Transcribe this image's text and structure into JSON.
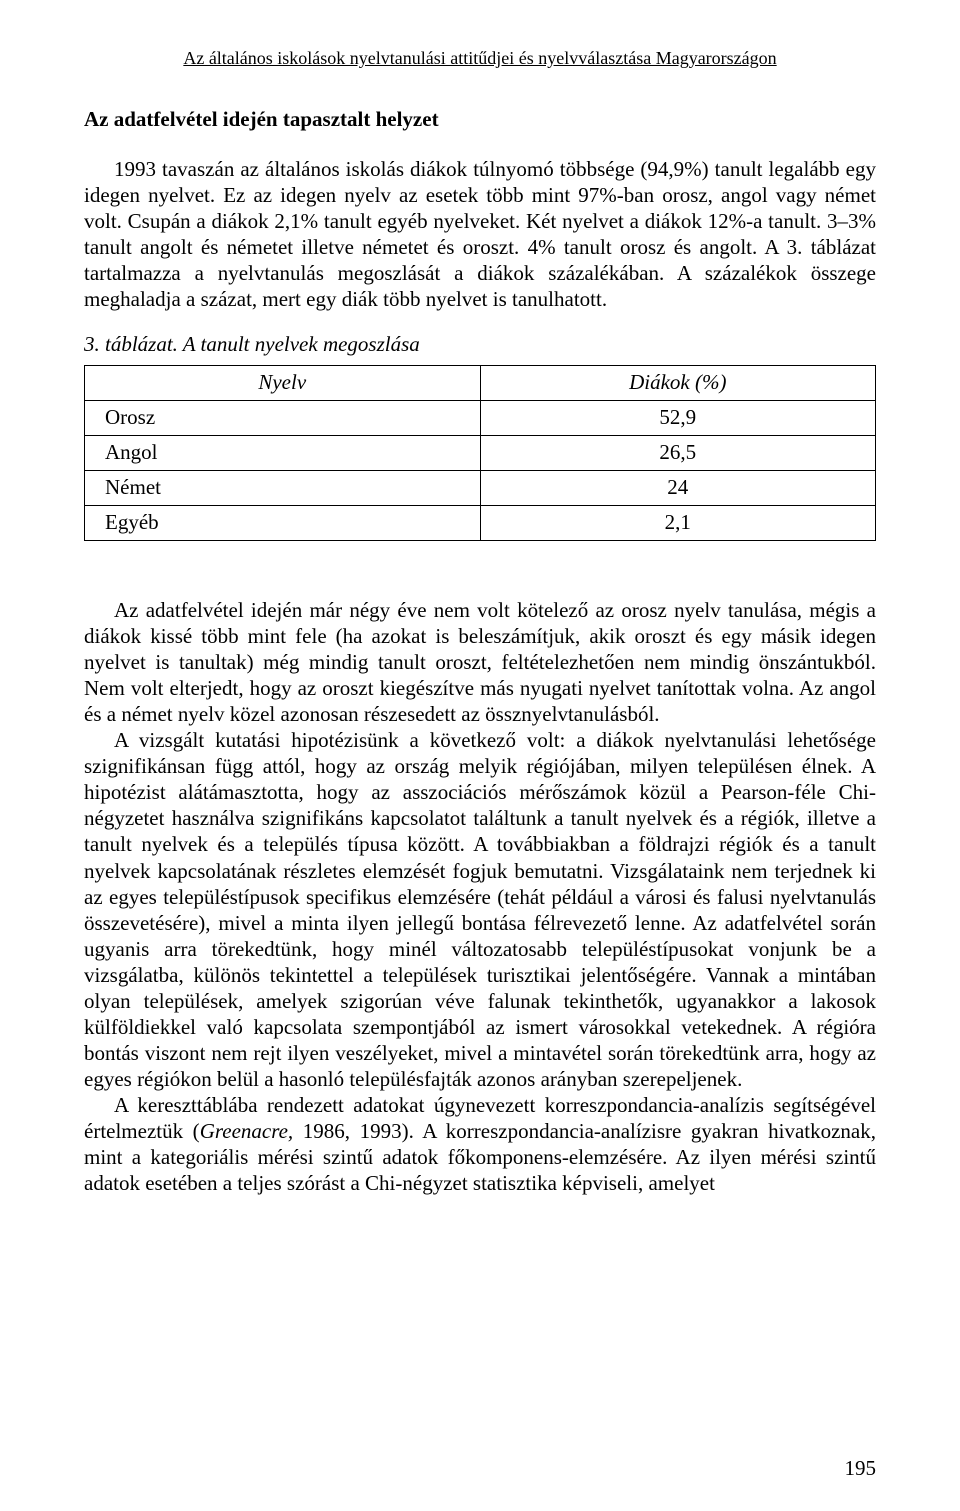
{
  "page": {
    "running_header": "Az általános iskolások nyelvtanulási attitűdjei és nyelvválasztása Magyarországon",
    "section_title": "Az adatfelvétel idején tapasztalt helyzet",
    "number": "195"
  },
  "paragraphs": {
    "p1": "1993 tavaszán az általános iskolás diákok túlnyomó többsége (94,9%) tanult legalább egy idegen nyelvet. Ez az idegen nyelv az esetek több mint 97%-ban orosz, angol vagy német volt. Csupán a diákok 2,1% tanult egyéb nyelveket. Két nyelvet a diákok 12%-a tanult. 3–3% tanult angolt és németet illetve németet és oroszt. 4% tanult orosz és angolt. A 3. táblázat tartalmazza a nyelvtanulás megoszlását a diákok százalékában. A százalékok összege meghaladja a százat, mert egy diák több nyelvet is tanulhatott.",
    "p2": "Az adatfelvétel idején már négy éve nem volt kötelező az orosz nyelv tanulása, mégis a diákok kissé több mint fele (ha azokat is beleszámítjuk, akik oroszt és egy másik idegen nyelvet is tanultak) még mindig tanult oroszt, feltételezhetően nem mindig önszántukból. Nem volt elterjedt, hogy az oroszt kiegészítve más nyugati nyelvet tanítottak volna. Az angol és a német nyelv közel azonosan részesedett az össznyelvtanulásból.",
    "p3": "A vizsgált kutatási hipotézisünk a következő volt: a diákok nyelvtanulási lehetősége szignifikánsan függ attól, hogy az ország melyik régiójában, milyen településen élnek. A hipotézist alátámasztotta, hogy az asszociációs mérőszámok közül a Pearson-féle Chi-négyzetet használva szignifikáns kapcsolatot találtunk a tanult nyelvek és a régiók, illetve a tanult nyelvek és a település típusa között. A továbbiakban a földrajzi régiók és a tanult nyelvek kapcsolatának részletes elemzését fogjuk bemutatni. Vizsgálataink nem terjednek ki az egyes településtípusok specifikus elemzésére (tehát például a városi és falusi nyelvtanulás összevetésére), mivel a minta ilyen jellegű bontása félrevezető lenne. Az adatfelvétel során ugyanis arra törekedtünk, hogy minél változatosabb településtípusokat vonjunk be a vizsgálatba, különös tekintettel a települések turisztikai jelentőségére. Vannak a mintában olyan települések, amelyek szigorúan véve falunak tekinthetők, ugyanakkor a lakosok külföldiekkel való kapcsolata szempontjából az ismert városokkal vetekednek. A régióra bontás viszont nem rejt ilyen veszélyeket, mivel a mintavétel során törekedtünk arra, hogy az egyes régiókon belül a hasonló településfajták azonos arányban szerepeljenek.",
    "p4_pre": "A kereszttáblába rendezett adatokat úgynevezett korreszpondancia-analízis segítségével értelmeztük (",
    "p4_cite": "Greenacre,",
    "p4_post": " 1986, 1993). A korreszpondancia-analízisre gyakran hivatkoznak, mint a kategoriális mérési szintű adatok főkomponens-elemzésére. Az ilyen mérési szintű adatok esetében a teljes szórást a Chi-négyzet statisztika képviseli, amelyet"
  },
  "table3": {
    "caption_prefix": "3. táblázat.",
    "caption_rest": "  A tanult nyelvek megoszlása",
    "columns": [
      "Nyelv",
      "Diákok (%)"
    ],
    "rows": [
      {
        "lang": "Orosz",
        "pct": "52,9"
      },
      {
        "lang": "Angol",
        "pct": "26,5"
      },
      {
        "lang": "Német",
        "pct": "24"
      },
      {
        "lang": "Egyéb",
        "pct": "2,1"
      }
    ],
    "border_color": "#000000",
    "background_color": "#ffffff",
    "font_size_pt": 16,
    "col_align": [
      "left",
      "center"
    ]
  }
}
